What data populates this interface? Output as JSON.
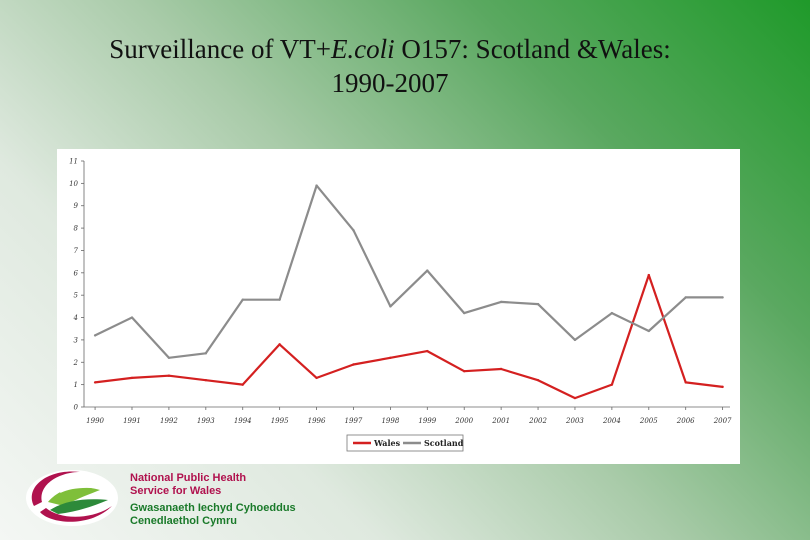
{
  "slide": {
    "title_prefix": "Surveillance of VT+",
    "title_italic": "E.coli",
    "title_suffix": " O157: Scotland &Wales:",
    "title_line2": "1990-2007"
  },
  "chart_data": {
    "type": "line",
    "title": "",
    "xlabel": "",
    "ylabel": "",
    "categories": [
      "1990",
      "1991",
      "1992",
      "1993",
      "1994",
      "1995",
      "1996",
      "1997",
      "1998",
      "1999",
      "2000",
      "2001",
      "2002",
      "2003",
      "2004",
      "2005",
      "2006",
      "2007"
    ],
    "series": [
      {
        "name": "Wales",
        "color": "#d42020",
        "values": [
          1.1,
          1.3,
          1.4,
          1.2,
          1.0,
          2.8,
          1.3,
          1.9,
          2.2,
          2.5,
          1.6,
          1.7,
          1.2,
          0.4,
          1.0,
          5.9,
          1.1,
          0.9
        ]
      },
      {
        "name": "Scotland",
        "color": "#8c8c8c",
        "values": [
          3.2,
          4.0,
          2.2,
          2.4,
          4.8,
          4.8,
          9.9,
          7.9,
          4.5,
          6.1,
          4.2,
          4.7,
          4.6,
          3.0,
          4.2,
          3.4,
          4.9,
          4.9
        ]
      }
    ],
    "y_ticks": [
      "0",
      "1",
      "2",
      "3",
      "4",
      "5",
      "6",
      "7",
      "8",
      "9",
      "10",
      "11"
    ],
    "ylim": [
      0,
      11
    ],
    "grid": false,
    "legend_position": "bottom-center"
  },
  "logo": {
    "line1": "National Public Health",
    "line2": "Service for Wales",
    "line3": "Gwasanaeth Iechyd Cyhoeddus",
    "line4": "Cenedlaethol Cymru"
  }
}
